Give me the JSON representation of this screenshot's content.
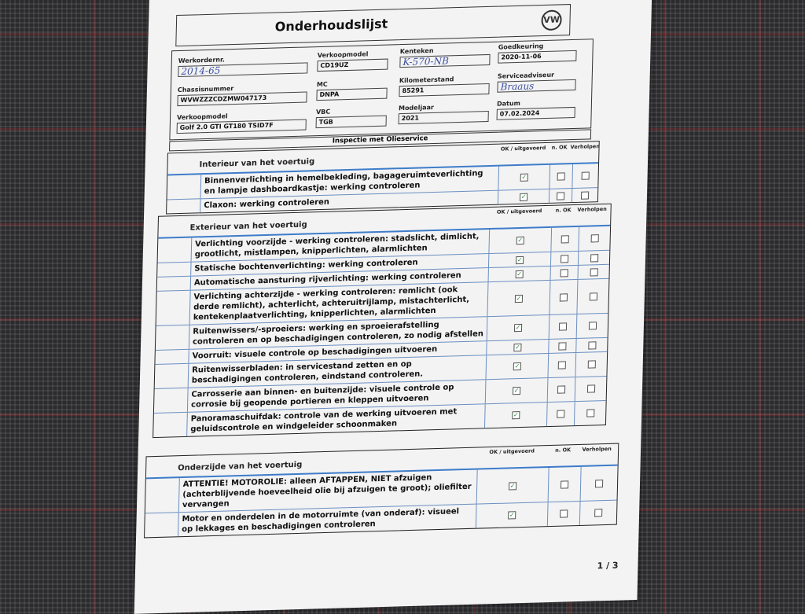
{
  "title": "Onderhoudslijst",
  "logo": "VW",
  "fields": [
    {
      "label": "Werkordernr.",
      "value": "2014-65",
      "handwritten": true
    },
    {
      "label": "Verkoopmodel",
      "value": "CD19UZ"
    },
    {
      "label": "Kenteken",
      "value": "K-570-NB",
      "handwritten": true
    },
    {
      "label": "Goedkeuring",
      "value": "2020-11-06"
    },
    {
      "label": "Chassisnummer",
      "value": "WVWZZZCDZMW047173"
    },
    {
      "label": "MC",
      "value": "DNPA"
    },
    {
      "label": "Kilometerstand",
      "value": "85291"
    },
    {
      "label": "Serviceadviseur",
      "value": "Braaus",
      "handwritten": true
    },
    {
      "label": "Verkoopmodel",
      "value": "Golf 2.0 GTI GT180 TSID7F"
    },
    {
      "label": "VBC",
      "value": "TGB"
    },
    {
      "label": "Modeljaar",
      "value": "2021"
    },
    {
      "label": "Datum",
      "value": "07.02.2024"
    }
  ],
  "inspection_title": "Inspectie met Olieservice",
  "columns": {
    "ok": "OK / uitgevoerd",
    "nok": "n. OK",
    "fix": "Verholpen"
  },
  "check_mark": "✓",
  "sections": [
    {
      "name": "Interieur van het voertuig",
      "rows": [
        {
          "text": "Binnenverlichting in hemelbekleding, bagageruimteverlichting en lampje dashboardkastje: werking controleren",
          "ok": true
        },
        {
          "text": "Claxon: werking controleren",
          "ok": true
        }
      ]
    },
    {
      "name": "Exterieur van het voertuig",
      "rows": [
        {
          "text": "Verlichting voorzijde - werking controleren: stadslicht, dimlicht, grootlicht, mistlampen, knipperlichten, alarmlichten",
          "ok": true
        },
        {
          "text": "Statische bochtenverlichting: werking controleren",
          "ok": true
        },
        {
          "text": "Automatische aansturing rijverlichting: werking controleren",
          "ok": true
        },
        {
          "text": "Verlichting achterzijde - werking controleren: remlicht (ook derde remlicht), achterlicht, achteruitrijlamp, mistachterlicht, kentekenplaatverlichting, knipperlichten, alarmlichten",
          "ok": true
        },
        {
          "text": "Ruitenwissers/-sproeiers: werking en sproeierafstelling controleren en op beschadigingen controleren, zo nodig afstellen",
          "ok": true
        },
        {
          "text": "Voorruit: visuele controle op beschadigingen uitvoeren",
          "ok": true
        },
        {
          "text": "Ruitenwisserbladen: in servicestand zetten en op beschadigingen controleren, eindstand controleren.",
          "ok": true
        },
        {
          "text": "Carrosserie aan binnen- en buitenzijde: visuele controle op corrosie bij geopende portieren en kleppen uitvoeren",
          "ok": true
        },
        {
          "text": "Panoramaschuifdak: controle van de werking uitvoeren met geluidscontrole en windgeleider schoonmaken",
          "ok": true
        }
      ]
    },
    {
      "name": "Onderzijde van het voertuig",
      "rows": [
        {
          "text": "ATTENTIE! MOTOROLIE: alleen AFTAPPEN, NIET afzuigen (achterblijvende hoeveelheid olie bij afzuigen te groot); oliefilter vervangen",
          "ok": true
        },
        {
          "text": "Motor en onderdelen in de motorruimte (van onderaf): visueel op lekkages en beschadigingen controleren",
          "ok": true
        }
      ]
    }
  ],
  "page": "1 / 3"
}
